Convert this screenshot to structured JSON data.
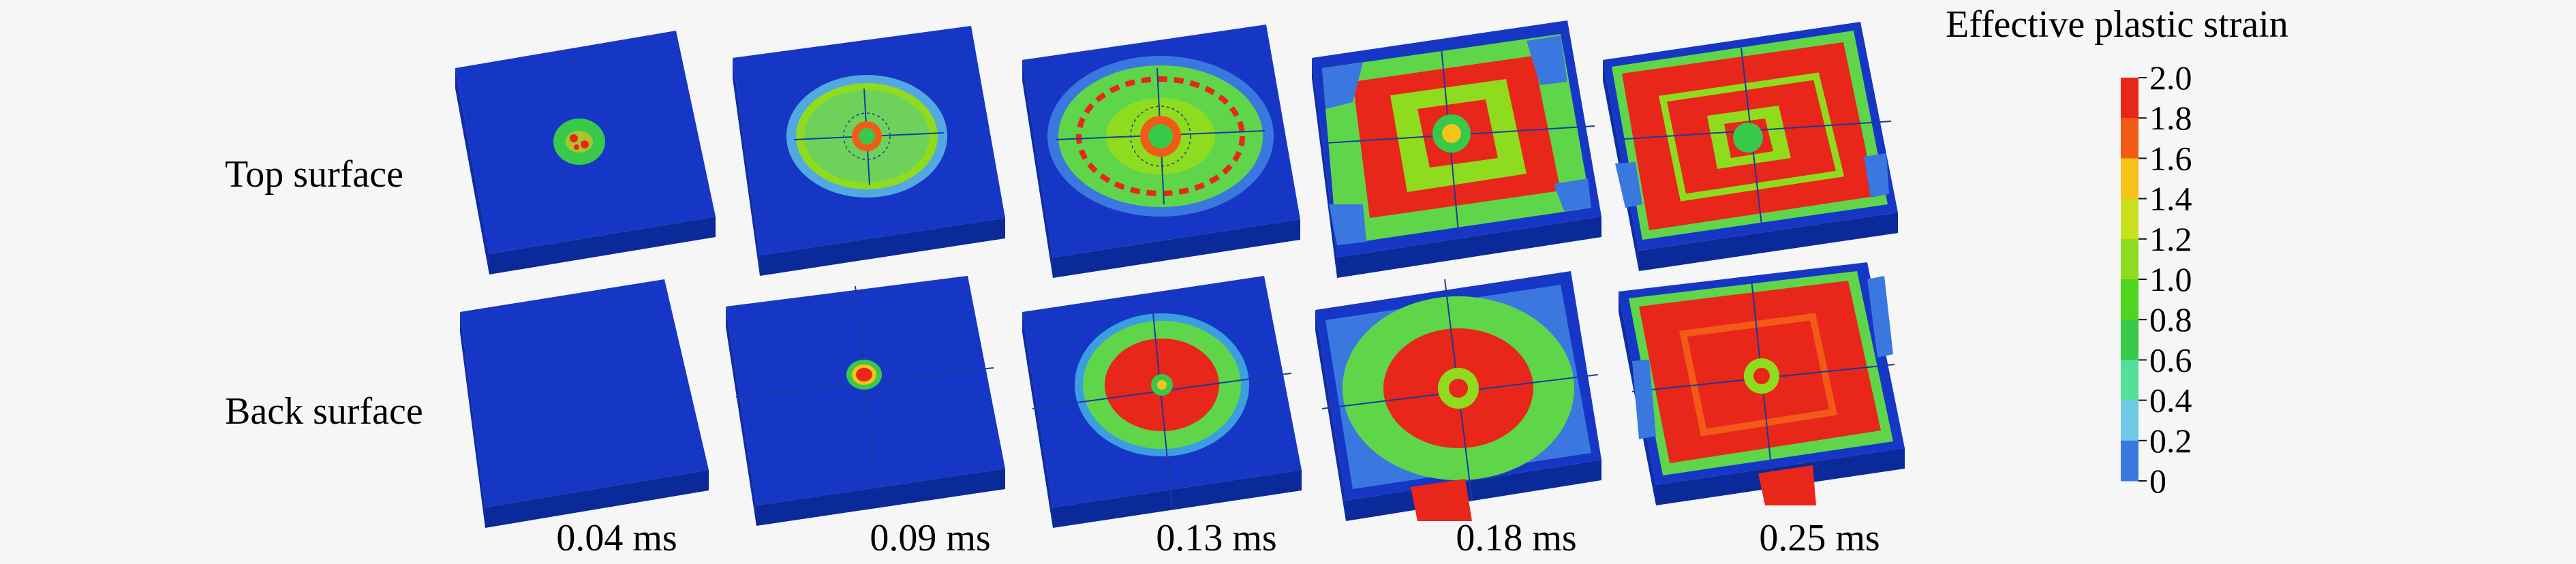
{
  "figure": {
    "row_labels": [
      "Top surface",
      "Back surface"
    ],
    "time_labels": [
      "0.04 ms",
      "0.09 ms",
      "0.13 ms",
      "0.18 ms",
      "0.25 ms"
    ],
    "legend": {
      "title": "Effective plastic strain",
      "ticks": [
        "2.0",
        "1.8",
        "1.6",
        "1.4",
        "1.2",
        "1.0",
        "0.8",
        "0.6",
        "0.4",
        "0.2",
        "0"
      ],
      "colors": [
        "#e8261a",
        "#f25a18",
        "#f7c21a",
        "#c8e01e",
        "#8fdc1e",
        "#4ed61e",
        "#39c94a",
        "#52e09a",
        "#6ec8e6",
        "#3a78e0",
        "#1035c8"
      ]
    },
    "panels": [
      {
        "row": "top",
        "time": "0.04 ms",
        "state": "small central damage spot"
      },
      {
        "row": "top",
        "time": "0.09 ms",
        "state": "green elliptical damage zone"
      },
      {
        "row": "top",
        "time": "0.13 ms",
        "state": "larger damage zone with red ring"
      },
      {
        "row": "top",
        "time": "0.18 ms",
        "state": "cross-shaped red damage spreading to edges"
      },
      {
        "row": "top",
        "time": "0.25 ms",
        "state": "mostly red damage across surface"
      },
      {
        "row": "back",
        "time": "0.04 ms",
        "state": "undamaged"
      },
      {
        "row": "back",
        "time": "0.09 ms",
        "state": "small red central spot"
      },
      {
        "row": "back",
        "time": "0.13 ms",
        "state": "red disc with green ring"
      },
      {
        "row": "back",
        "time": "0.18 ms",
        "state": "large red disc with green ring"
      },
      {
        "row": "back",
        "time": "0.25 ms",
        "state": "large red square damage zone"
      }
    ]
  }
}
